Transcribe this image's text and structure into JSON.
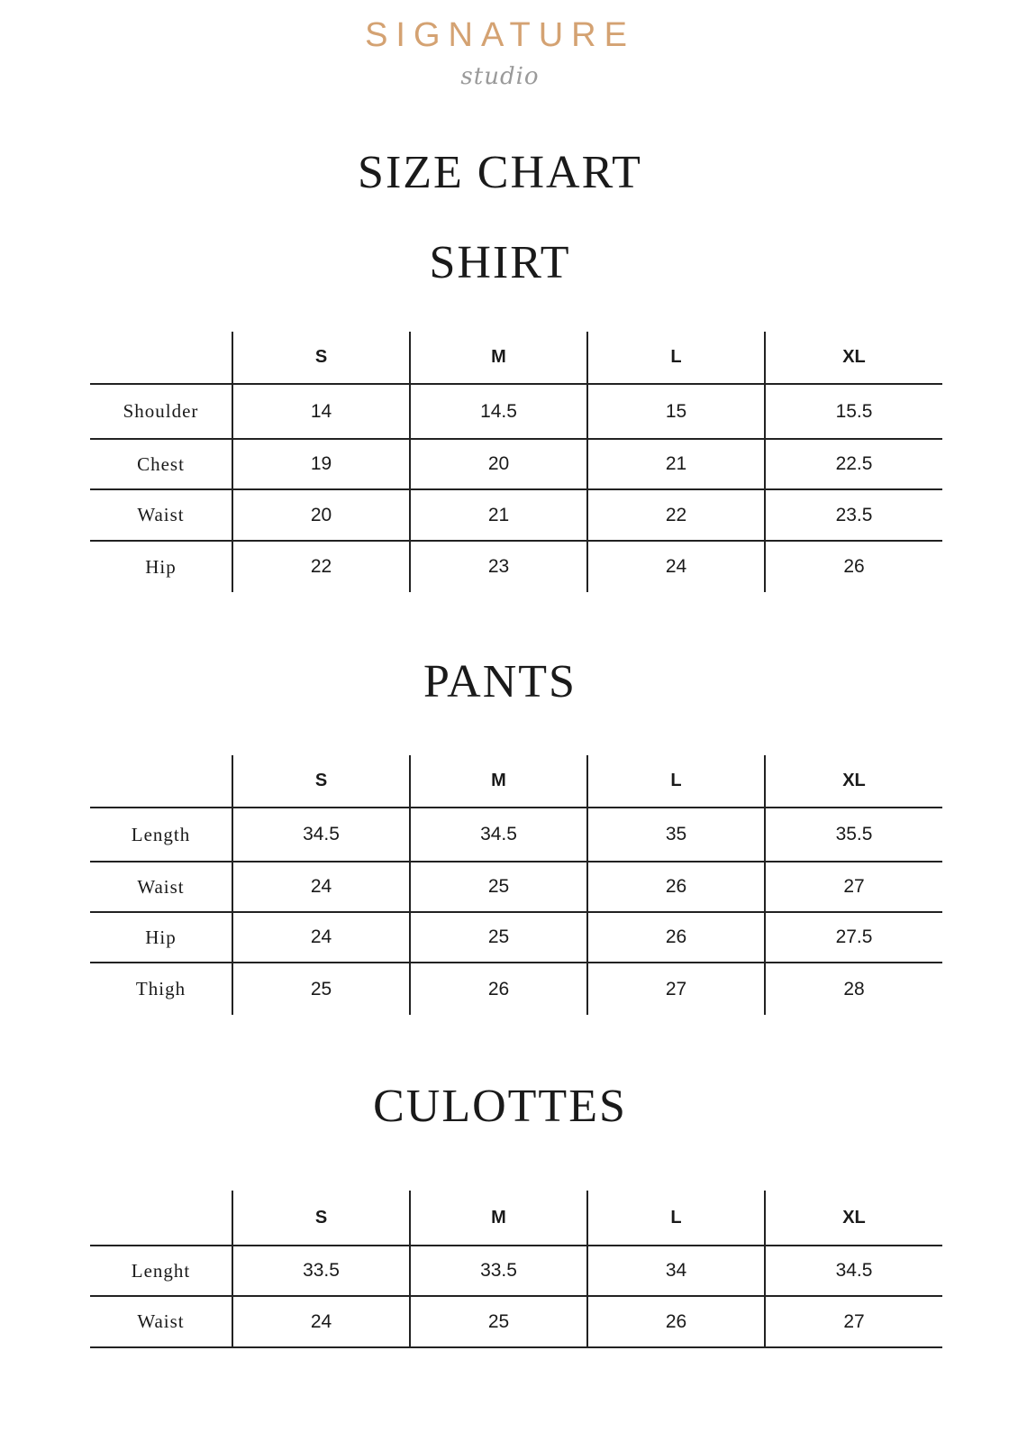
{
  "brand": {
    "name": "SIGNATURE",
    "sub": "studio",
    "color": "#d4a272"
  },
  "title": "SIZE CHART",
  "sizes": [
    "S",
    "M",
    "L",
    "XL"
  ],
  "sections": [
    {
      "title": "SHIRT",
      "rows": [
        {
          "label": "Shoulder",
          "values": [
            "14",
            "14.5",
            "15",
            "15.5"
          ]
        },
        {
          "label": "Chest",
          "values": [
            "19",
            "20",
            "21",
            "22.5"
          ]
        },
        {
          "label": "Waist",
          "values": [
            "20",
            "21",
            "22",
            "23.5"
          ]
        },
        {
          "label": "Hip",
          "values": [
            "22",
            "23",
            "24",
            "26"
          ]
        }
      ]
    },
    {
      "title": "PANTS",
      "rows": [
        {
          "label": "Length",
          "values": [
            "34.5",
            "34.5",
            "35",
            "35.5"
          ]
        },
        {
          "label": "Waist",
          "values": [
            "24",
            "25",
            "26",
            "27"
          ]
        },
        {
          "label": "Hip",
          "values": [
            "24",
            "25",
            "26",
            "27.5"
          ]
        },
        {
          "label": "Thigh",
          "values": [
            "25",
            "26",
            "27",
            "28"
          ]
        }
      ]
    },
    {
      "title": "CULOTTES",
      "rows": [
        {
          "label": "Lenght",
          "values": [
            "33.5",
            "33.5",
            "34",
            "34.5"
          ]
        },
        {
          "label": "Waist",
          "values": [
            "24",
            "25",
            "26",
            "27"
          ]
        }
      ]
    }
  ]
}
